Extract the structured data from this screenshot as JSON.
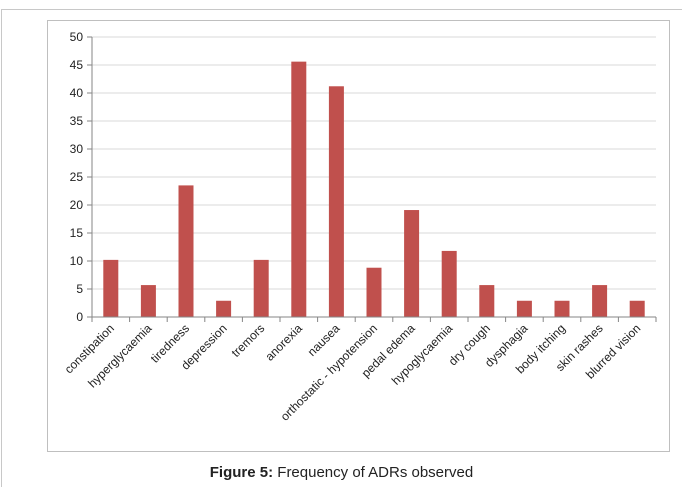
{
  "caption": {
    "label": "Figure 5:",
    "text": " Frequency of ADRs observed"
  },
  "chart_data": {
    "type": "bar",
    "categories": [
      "constipation",
      "hyperglycaemia",
      "tiredness",
      "depression",
      "tremors",
      "anorexia",
      "nausea",
      "orthostatic - hypotension",
      "pedal edema",
      "hypoglycaemia",
      "dry cough",
      "dysphagia",
      "body itching",
      "skin rashes",
      "blurred vision"
    ],
    "values": [
      10.2,
      5.7,
      23.5,
      2.9,
      10.2,
      45.6,
      41.2,
      8.8,
      19.1,
      11.8,
      5.7,
      2.9,
      2.9,
      5.7,
      2.9
    ],
    "yticks": [
      0,
      5,
      10,
      15,
      20,
      25,
      30,
      35,
      40,
      45,
      50
    ],
    "ylim": [
      0,
      50
    ],
    "grid": true,
    "legend": "none",
    "bar_color": "#c0504d",
    "grid_color": "#d9d9d9",
    "axis_color": "#868686"
  }
}
